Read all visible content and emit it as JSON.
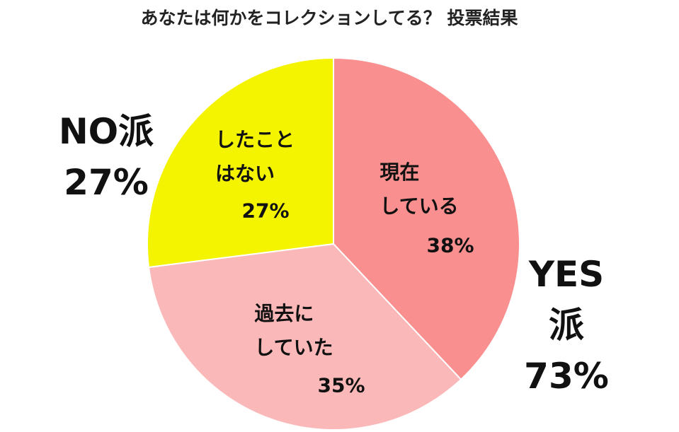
{
  "chart_data": {
    "type": "pie",
    "title": "あなたは何かをコレクションしてる？ 投票結果",
    "categories": [
      "現在\nしている",
      "過去に\nしていた",
      "したこと\nはない"
    ],
    "values": [
      38,
      35,
      27
    ],
    "value_labels": [
      "38%",
      "35%",
      "27%"
    ],
    "colors": [
      "#f98f8f",
      "#fbb8b8",
      "#f4f400"
    ],
    "annotations": [
      "NO派\n27%",
      "YES\n派\n73%"
    ]
  }
}
